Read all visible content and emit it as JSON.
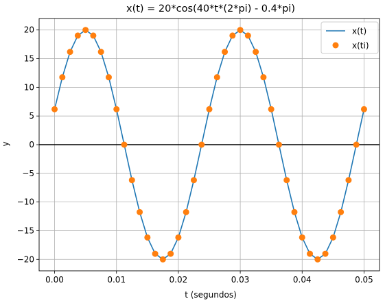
{
  "chart_data": {
    "type": "line",
    "title": "x(t) = 20*cos(40*t*(2*pi) - 0.4*pi)",
    "xlabel": "t (segundos)",
    "ylabel": "y",
    "xlim": [
      -0.0025,
      0.0525
    ],
    "ylim": [
      -22,
      22
    ],
    "xticks": [
      0.0,
      0.01,
      0.02,
      0.03,
      0.04,
      0.05
    ],
    "xtick_labels": [
      "0.00",
      "0.01",
      "0.02",
      "0.03",
      "0.04",
      "0.05"
    ],
    "yticks": [
      -20,
      -15,
      -10,
      -5,
      0,
      5,
      10,
      15,
      20
    ],
    "ytick_labels": [
      "−20",
      "−15",
      "−10",
      "−5",
      "0",
      "5",
      "10",
      "15",
      "20"
    ],
    "grid": true,
    "zero_line": true,
    "legend_position": "top-right",
    "series": [
      {
        "name": "x(t)",
        "kind": "line",
        "color": "#1f77b4",
        "x": [
          0.0,
          0.00125,
          0.0025,
          0.00375,
          0.005,
          0.00625,
          0.0075,
          0.00875,
          0.01,
          0.01125,
          0.0125,
          0.01375,
          0.015,
          0.01625,
          0.0175,
          0.01875,
          0.02,
          0.02125,
          0.0225,
          0.02375,
          0.025,
          0.02625,
          0.0275,
          0.02875,
          0.03,
          0.03125,
          0.0325,
          0.03375,
          0.035,
          0.03625,
          0.0375,
          0.03875,
          0.04,
          0.04125,
          0.0425,
          0.04375,
          0.045,
          0.04625,
          0.0475,
          0.04875,
          0.05
        ],
        "y": [
          6.18,
          11.76,
          16.18,
          19.02,
          20.0,
          19.02,
          16.18,
          11.76,
          6.18,
          0.0,
          -6.18,
          -11.76,
          -16.18,
          -19.02,
          -20.0,
          -19.02,
          -16.18,
          -11.76,
          -6.18,
          0.0,
          6.18,
          11.76,
          16.18,
          19.02,
          20.0,
          19.02,
          16.18,
          11.76,
          6.18,
          0.0,
          -6.18,
          -11.76,
          -16.18,
          -19.02,
          -20.0,
          -19.02,
          -16.18,
          -11.76,
          -6.18,
          0.0,
          6.18
        ]
      },
      {
        "name": "x(ti)",
        "kind": "scatter",
        "color": "#ff7f0e",
        "x": [
          0.0,
          0.00125,
          0.0025,
          0.00375,
          0.005,
          0.00625,
          0.0075,
          0.00875,
          0.01,
          0.01125,
          0.0125,
          0.01375,
          0.015,
          0.01625,
          0.0175,
          0.01875,
          0.02,
          0.02125,
          0.0225,
          0.02375,
          0.025,
          0.02625,
          0.0275,
          0.02875,
          0.03,
          0.03125,
          0.0325,
          0.03375,
          0.035,
          0.03625,
          0.0375,
          0.03875,
          0.04,
          0.04125,
          0.0425,
          0.04375,
          0.045,
          0.04625,
          0.0475,
          0.04875,
          0.05
        ],
        "y": [
          6.18,
          11.76,
          16.18,
          19.02,
          20.0,
          19.02,
          16.18,
          11.76,
          6.18,
          0.0,
          -6.18,
          -11.76,
          -16.18,
          -19.02,
          -20.0,
          -19.02,
          -16.18,
          -11.76,
          -6.18,
          0.0,
          6.18,
          11.76,
          16.18,
          19.02,
          20.0,
          19.02,
          16.18,
          11.76,
          6.18,
          0.0,
          -6.18,
          -11.76,
          -16.18,
          -19.02,
          -20.0,
          -19.02,
          -16.18,
          -11.76,
          -6.18,
          0.0,
          6.18
        ]
      }
    ]
  }
}
